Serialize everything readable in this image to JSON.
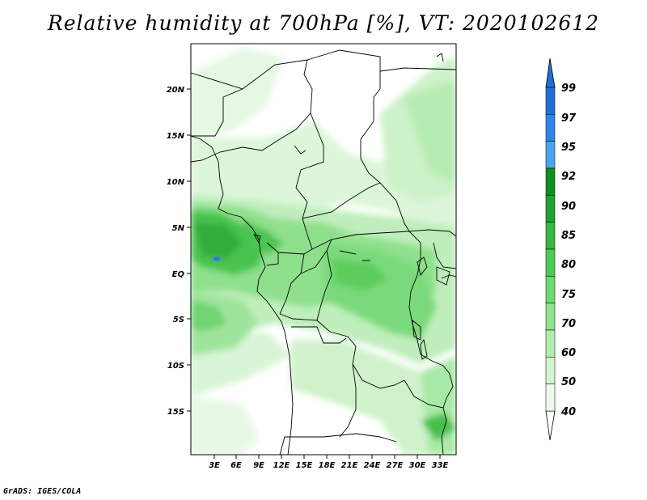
{
  "title": "Relative humidity at 700hPa [%], VT: 2020102612",
  "credit": "GrADS: IGES/COLA",
  "map": {
    "lat_ticks": [
      "20N",
      "15N",
      "10N",
      "5N",
      "EQ",
      "5S",
      "10S",
      "15S"
    ],
    "lon_ticks": [
      "3E",
      "6E",
      "9E",
      "12E",
      "15E",
      "18E",
      "21E",
      "24E",
      "27E",
      "30E",
      "33E"
    ]
  },
  "colorbar": {
    "labels": [
      "99",
      "97",
      "95",
      "92",
      "90",
      "85",
      "80",
      "75",
      "70",
      "60",
      "50",
      "40"
    ],
    "colors": [
      "#1f6fd8",
      "#2f86e8",
      "#4aa4ee",
      "#0f8f1f",
      "#1fa32d",
      "#34b83e",
      "#4ccc52",
      "#6cd96e",
      "#8fe38f",
      "#b2ecb0",
      "#d2f4cf",
      "#ecfbea"
    ]
  },
  "colors": {
    "dry": "#ffffff",
    "moist_low": "#e4f8e2",
    "moist_mid": "#9ee49c",
    "moist_high": "#3dbd45",
    "saturated": "#3f8fe0"
  }
}
